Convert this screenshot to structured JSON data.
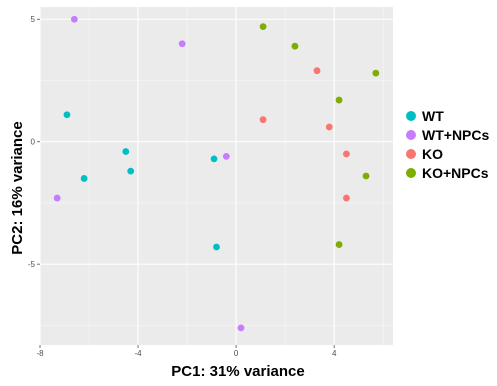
{
  "chart_data": {
    "type": "scatter",
    "xlabel": "PC1: 31% variance",
    "ylabel": "PC2: 16% variance",
    "xlim": [
      -8,
      6.4
    ],
    "ylim": [
      -8.3,
      5.5
    ],
    "x_ticks": [
      -8,
      -4,
      0,
      4
    ],
    "x_tick_labels": [
      "-8",
      "-4",
      "0",
      "4"
    ],
    "y_ticks": [
      -5,
      0,
      5
    ],
    "y_tick_labels": [
      "-5",
      "0",
      "5"
    ],
    "grid": true,
    "legend_position": "right",
    "series": [
      {
        "name": "WT",
        "color": "#00BFC4",
        "points": [
          [
            -6.9,
            1.1
          ],
          [
            -4.5,
            -0.4
          ],
          [
            -6.2,
            -1.5
          ],
          [
            -4.3,
            -1.2
          ],
          [
            -0.9,
            -0.7
          ],
          [
            -0.8,
            -4.3
          ]
        ]
      },
      {
        "name": "WT+NPCs",
        "color": "#C77CFF",
        "points": [
          [
            -6.6,
            5.0
          ],
          [
            -2.2,
            4.0
          ],
          [
            -0.4,
            -0.6
          ],
          [
            -7.3,
            -2.3
          ],
          [
            0.2,
            -7.6
          ]
        ]
      },
      {
        "name": "KO",
        "color": "#F8766D",
        "points": [
          [
            3.3,
            2.9
          ],
          [
            1.1,
            0.9
          ],
          [
            3.8,
            0.6
          ],
          [
            4.5,
            -0.5
          ],
          [
            4.5,
            -2.3
          ]
        ]
      },
      {
        "name": "KO+NPCs",
        "color": "#7CAE00",
        "points": [
          [
            1.1,
            4.7
          ],
          [
            2.4,
            3.9
          ],
          [
            5.7,
            2.8
          ],
          [
            4.2,
            1.7
          ],
          [
            5.3,
            -1.4
          ],
          [
            4.2,
            -4.2
          ]
        ]
      }
    ]
  }
}
